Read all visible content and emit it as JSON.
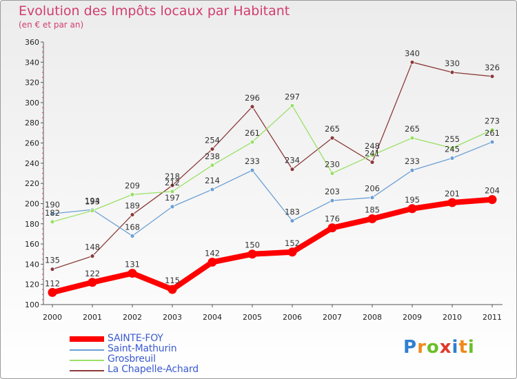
{
  "header": {
    "title": "Evolution des Impôts locaux par Habitant",
    "subtitle": "(en € et par an)"
  },
  "brand": {
    "letters": [
      "P",
      "r",
      "o",
      "x",
      "i",
      "t",
      "i"
    ],
    "colors": [
      "#2f7fd2",
      "#f08a1c",
      "#6bbf2a",
      "#e0392b",
      "#2f7fd2",
      "#f08a1c",
      "#6bbf2a"
    ]
  },
  "chart_data": {
    "type": "line",
    "x": [
      "2000",
      "2001",
      "2002",
      "2003",
      "2004",
      "2005",
      "2006",
      "2007",
      "2008",
      "2009",
      "2010",
      "2011"
    ],
    "ylim": [
      100,
      360
    ],
    "yticks": [
      100,
      120,
      140,
      160,
      180,
      200,
      220,
      240,
      260,
      280,
      300,
      320,
      340,
      360
    ],
    "grid": false,
    "legend_position": "bottom-left",
    "series": [
      {
        "name": "SAINTE-FOY",
        "color": "#ff0000",
        "values": [
          112,
          122,
          131,
          115,
          142,
          150,
          152,
          176,
          185,
          195,
          201,
          204
        ]
      },
      {
        "name": "Saint-Mathurin",
        "color": "#6b9fd4",
        "values": [
          190,
          194,
          168,
          197,
          214,
          233,
          183,
          203,
          206,
          233,
          245,
          261
        ]
      },
      {
        "name": "Grosbreuil",
        "color": "#99e066",
        "values": [
          182,
          193,
          209,
          212,
          238,
          261,
          297,
          230,
          248,
          265,
          255,
          273
        ]
      },
      {
        "name": "La Chapelle-Achard",
        "color": "#8b3a3a",
        "values": [
          135,
          148,
          189,
          218,
          254,
          296,
          234,
          265,
          241,
          340,
          330,
          326
        ]
      }
    ]
  }
}
